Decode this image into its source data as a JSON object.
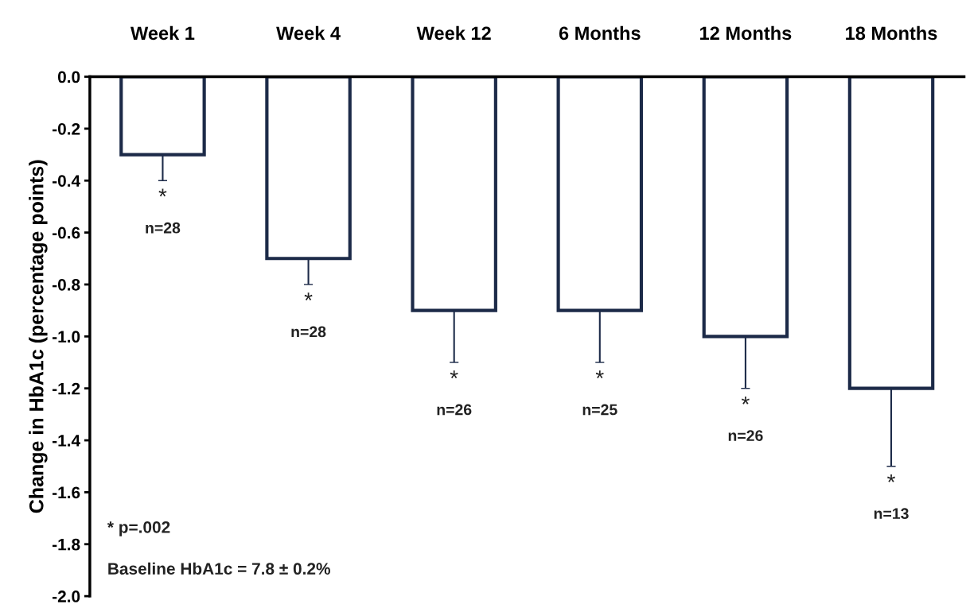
{
  "chart_data": {
    "type": "bar",
    "ylabel": "Change in HbA1c (percentage points)",
    "categories": [
      "Week 1",
      "Week 4",
      "Week 12",
      "6 Months",
      "12 Months",
      "18 Months"
    ],
    "values": [
      -0.3,
      -0.7,
      -0.9,
      -0.9,
      -1.0,
      -1.2
    ],
    "errors": [
      [
        -0.4,
        -0.3
      ],
      [
        -0.8,
        -0.7
      ],
      [
        -1.1,
        -0.9
      ],
      [
        -1.1,
        -0.9
      ],
      [
        -1.2,
        -1.0
      ],
      [
        -1.5,
        -1.2
      ]
    ],
    "color": "#1c2a48",
    "ylim": [
      -2.0,
      0.0
    ],
    "yticks": [
      {
        "value": -2.0,
        "label": "-2.0"
      },
      {
        "value": -1.8,
        "label": "-1.8"
      },
      {
        "value": -1.6,
        "label": "-1.6"
      },
      {
        "value": -1.4,
        "label": "-1.4"
      },
      {
        "value": -1.2,
        "label": "-1.2"
      },
      {
        "value": -1.0,
        "label": "-1.0"
      },
      {
        "value": -0.8,
        "label": "-0.8"
      },
      {
        "value": -0.6,
        "label": "-0.6"
      },
      {
        "value": -0.4,
        "label": "-0.4"
      },
      {
        "value": -0.2,
        "label": "-0.2"
      },
      {
        "value": 0.0,
        "label": "0.0"
      }
    ],
    "grid": false,
    "annotations": [
      "*",
      "n=28",
      "*",
      "n=28",
      "*",
      "n=26",
      "*",
      "n=25",
      "*",
      "n=26",
      "*",
      "n=13",
      "* p=.002",
      "Baseline HbA1c = 7.8 ± 0.2%"
    ]
  }
}
